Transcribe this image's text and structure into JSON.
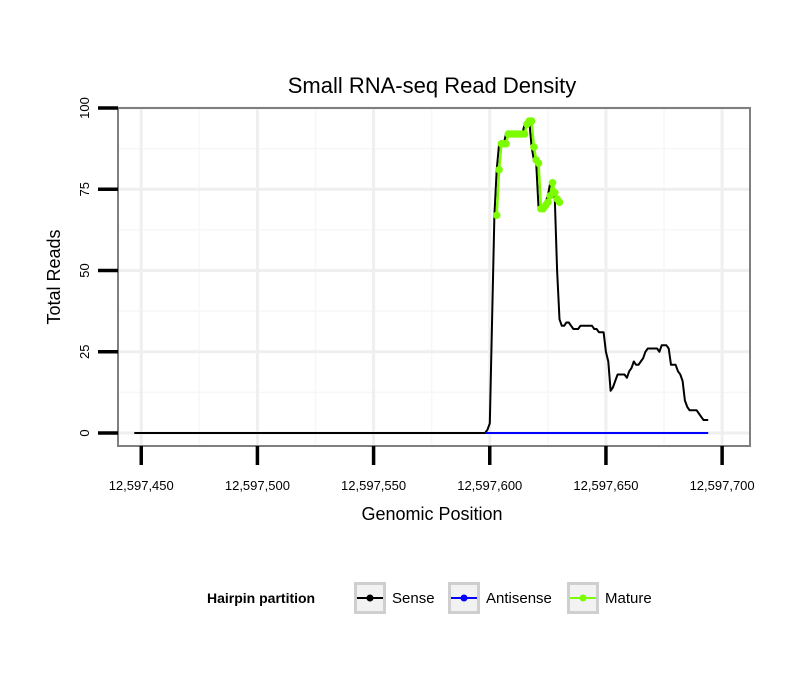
{
  "chart_data": {
    "type": "line",
    "title": "Small RNA-seq Read Density",
    "xlabel": "Genomic Position",
    "ylabel": "Total Reads",
    "xlim": [
      12597440,
      12597712
    ],
    "ylim": [
      -4,
      100
    ],
    "x_ticks": [
      12597450,
      12597500,
      12597550,
      12597600,
      12597650,
      12597700
    ],
    "x_tick_labels": [
      "12,597,450",
      "12,597,500",
      "12,597,550",
      "12,597,600",
      "12,597,650",
      "12,597,700"
    ],
    "y_ticks": [
      0,
      25,
      50,
      75,
      100
    ],
    "y_tick_labels": [
      "0",
      "25",
      "50",
      "75",
      "100"
    ],
    "grid": true,
    "legend": {
      "title": "Hairpin partition",
      "position": "bottom",
      "entries": [
        {
          "name": "Sense",
          "color": "#000000"
        },
        {
          "name": "Antisense",
          "color": "#0000ff"
        },
        {
          "name": "Mature",
          "color": "#7cfc00"
        }
      ]
    },
    "series": [
      {
        "name": "Sense",
        "color": "#000000",
        "x": [
          12597447,
          12597598,
          12597599,
          12597600,
          12597601,
          12597602,
          12597603,
          12597604,
          12597605,
          12597606,
          12597607,
          12597608,
          12597609,
          12597610,
          12597611,
          12597612,
          12597613,
          12597614,
          12597615,
          12597616,
          12597617,
          12597618,
          12597619,
          12597620,
          12597621,
          12597622,
          12597623,
          12597624,
          12597625,
          12597626,
          12597627,
          12597628,
          12597629,
          12597630,
          12597631,
          12597632,
          12597633,
          12597634,
          12597635,
          12597636,
          12597637,
          12597638,
          12597639,
          12597640,
          12597641,
          12597642,
          12597643,
          12597644,
          12597645,
          12597646,
          12597647,
          12597648,
          12597649,
          12597650,
          12597651,
          12597652,
          12597653,
          12597654,
          12597655,
          12597656,
          12597657,
          12597658,
          12597659,
          12597660,
          12597661,
          12597662,
          12597663,
          12597664,
          12597665,
          12597666,
          12597667,
          12597668,
          12597669,
          12597670,
          12597671,
          12597672,
          12597673,
          12597674,
          12597675,
          12597676,
          12597677,
          12597678,
          12597679,
          12597680,
          12597681,
          12597682,
          12597683,
          12597684,
          12597685,
          12597686,
          12597687,
          12597688,
          12597689,
          12597690,
          12597691,
          12597692,
          12597693,
          12597694
        ],
        "y": [
          0,
          0,
          1,
          3,
          35,
          67,
          81,
          89,
          89,
          89,
          92,
          92,
          92,
          92,
          92,
          92,
          92,
          92,
          95,
          96,
          96,
          88,
          84,
          83,
          69,
          69,
          70,
          71,
          73,
          77,
          74,
          72,
          50,
          35,
          33,
          33,
          34,
          34,
          33,
          32,
          32,
          32,
          33,
          33,
          33,
          33,
          33,
          33,
          32,
          32,
          31,
          31,
          31,
          25,
          22,
          13,
          14,
          16,
          18,
          18,
          18,
          18,
          17,
          19,
          20,
          22,
          21,
          21,
          22,
          23,
          25,
          26,
          26,
          26,
          26,
          26,
          25,
          27,
          27,
          27,
          26,
          21,
          21,
          21,
          19,
          18,
          16,
          10,
          8,
          7,
          7,
          7,
          7,
          6,
          5,
          4,
          4,
          4
        ]
      },
      {
        "name": "Antisense",
        "color": "#0000ff",
        "x": [
          12597598,
          12597694
        ],
        "y": [
          0,
          0
        ]
      },
      {
        "name": "Mature",
        "color": "#7cfc00",
        "x": [
          12597603,
          12597604,
          12597605,
          12597606,
          12597607,
          12597608,
          12597609,
          12597610,
          12597611,
          12597612,
          12597613,
          12597614,
          12597615,
          12597616,
          12597617,
          12597618,
          12597619,
          12597620,
          12597621,
          12597622,
          12597623,
          12597624,
          12597625,
          12597626,
          12597627,
          12597628,
          12597629,
          12597630
        ],
        "y": [
          67,
          81,
          89,
          89,
          89,
          92,
          92,
          92,
          92,
          92,
          92,
          92,
          92,
          95,
          96,
          96,
          88,
          84,
          83,
          69,
          69,
          70,
          71,
          73,
          77,
          74,
          72,
          71
        ]
      }
    ]
  }
}
